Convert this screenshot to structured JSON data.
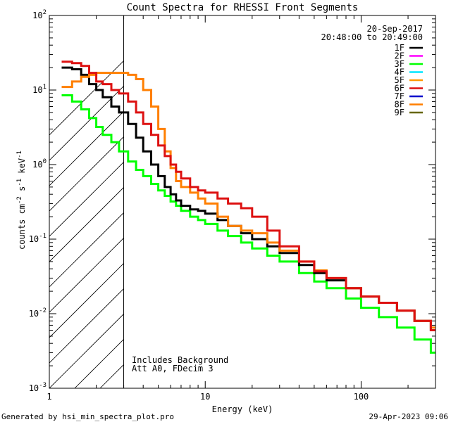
{
  "chart_data": {
    "type": "line",
    "title": "Count Spectra for RHESSI Front Segments",
    "xlabel": "Energy (keV)",
    "ylabel_main": "counts cm",
    "ylabel_exp1": "-2",
    "ylabel_mid": " s",
    "ylabel_exp2": "-1",
    "ylabel_end": " keV",
    "ylabel_exp3": "-1",
    "x_scale": "log",
    "y_scale": "log",
    "xlim": [
      1,
      300
    ],
    "ylim": [
      0.001,
      100
    ],
    "x_ticks": [
      {
        "value": 1,
        "label": "1"
      },
      {
        "value": 10,
        "label": "10"
      },
      {
        "value": 100,
        "label": "100"
      }
    ],
    "y_ticks": [
      {
        "value": 100,
        "base": "10",
        "exp": "2"
      },
      {
        "value": 10,
        "base": "10",
        "exp": "1"
      },
      {
        "value": 1,
        "base": "10",
        "exp": "0"
      },
      {
        "value": 0.1,
        "base": "10",
        "exp": "-1"
      },
      {
        "value": 0.01,
        "base": "10",
        "exp": "-2"
      },
      {
        "value": 0.001,
        "base": "10",
        "exp": "-3"
      }
    ],
    "shaded_region": {
      "from": 1,
      "to": 3,
      "style": "hatched"
    },
    "date": "20-Sep-2017",
    "time_range": "20:48:00 to 20:49:00",
    "annotations": [
      "Includes Background",
      "Att A0, FDecim 3"
    ],
    "legend_position": "top-right",
    "series": [
      {
        "name": "1F",
        "color": "#000000",
        "x": [
          1.2,
          1.4,
          1.6,
          1.8,
          2.0,
          2.2,
          2.5,
          2.8,
          3.2,
          3.6,
          4.0,
          4.5,
          5.0,
          5.5,
          6.0,
          6.5,
          7.0,
          8.0,
          9.0,
          10.0,
          12.0,
          14.0,
          17.0,
          20.0,
          25.0,
          30.0,
          40.0,
          50.0,
          60.0,
          80.0,
          100.0,
          130.0,
          170.0,
          220.0,
          280.0
        ],
        "y": [
          20,
          19,
          16,
          12,
          10,
          8,
          6,
          5,
          3.5,
          2.3,
          1.5,
          1.0,
          0.7,
          0.5,
          0.4,
          0.33,
          0.28,
          0.25,
          0.24,
          0.22,
          0.18,
          0.15,
          0.12,
          0.1,
          0.08,
          0.065,
          0.045,
          0.035,
          0.028,
          0.022,
          0.017,
          0.014,
          0.011,
          0.008,
          0.006
        ]
      },
      {
        "name": "2F",
        "color": "#ff00ff",
        "x": [],
        "y": []
      },
      {
        "name": "3F",
        "color": "#00ff00",
        "x": [
          1.2,
          1.4,
          1.6,
          1.8,
          2.0,
          2.2,
          2.5,
          2.8,
          3.2,
          3.6,
          4.0,
          4.5,
          5.0,
          5.5,
          6.0,
          6.5,
          7.0,
          8.0,
          9.0,
          10.0,
          12.0,
          14.0,
          17.0,
          20.0,
          25.0,
          30.0,
          40.0,
          50.0,
          60.0,
          80.0,
          100.0,
          130.0,
          170.0,
          220.0,
          280.0
        ],
        "y": [
          8.5,
          7.0,
          5.5,
          4.2,
          3.2,
          2.5,
          2.0,
          1.5,
          1.1,
          0.85,
          0.7,
          0.55,
          0.45,
          0.38,
          0.32,
          0.28,
          0.24,
          0.2,
          0.18,
          0.16,
          0.13,
          0.11,
          0.09,
          0.075,
          0.06,
          0.05,
          0.035,
          0.027,
          0.022,
          0.016,
          0.012,
          0.009,
          0.0065,
          0.0045,
          0.003
        ]
      },
      {
        "name": "4F",
        "color": "#00e5ff",
        "x": [],
        "y": []
      },
      {
        "name": "5F",
        "color": "#ff9900",
        "x": [],
        "y": []
      },
      {
        "name": "6F",
        "color": "#dd1111",
        "x": [
          1.2,
          1.4,
          1.6,
          1.8,
          2.0,
          2.2,
          2.5,
          2.8,
          3.2,
          3.6,
          4.0,
          4.5,
          5.0,
          5.5,
          6.0,
          6.5,
          7.0,
          8.0,
          9.0,
          10.0,
          12.0,
          14.0,
          17.0,
          20.0,
          25.0,
          30.0,
          40.0,
          50.0,
          60.0,
          80.0,
          100.0,
          130.0,
          170.0,
          220.0,
          280.0
        ],
        "y": [
          24,
          23,
          21,
          17,
          13,
          12,
          10,
          9,
          7,
          5,
          3.5,
          2.5,
          1.8,
          1.3,
          1.0,
          0.8,
          0.65,
          0.5,
          0.45,
          0.42,
          0.35,
          0.3,
          0.26,
          0.2,
          0.13,
          0.08,
          0.05,
          0.037,
          0.03,
          0.022,
          0.017,
          0.014,
          0.011,
          0.008,
          0.006
        ]
      },
      {
        "name": "7F",
        "color": "#0000cc",
        "x": [],
        "y": []
      },
      {
        "name": "8F",
        "color": "#ff7f00",
        "x": [
          1.2,
          1.4,
          1.6,
          1.8,
          2.0,
          2.2,
          2.5,
          2.8,
          3.2,
          3.6,
          4.0,
          4.5,
          5.0,
          5.5,
          6.0,
          6.5,
          7.0,
          8.0,
          9.0,
          10.0,
          12.0,
          14.0,
          17.0,
          20.0,
          25.0,
          30.0,
          40.0,
          50.0,
          60.0,
          80.0,
          100.0,
          130.0,
          170.0,
          220.0,
          280.0
        ],
        "y": [
          11,
          13,
          15,
          16,
          17,
          17,
          17,
          17,
          16,
          14,
          10,
          6,
          3,
          1.5,
          0.9,
          0.6,
          0.5,
          0.42,
          0.35,
          0.3,
          0.2,
          0.15,
          0.13,
          0.12,
          0.09,
          0.07,
          0.05,
          0.038,
          0.03,
          0.022,
          0.017,
          0.014,
          0.011,
          0.008,
          0.0065
        ]
      },
      {
        "name": "9F",
        "color": "#666600",
        "x": [],
        "y": []
      }
    ]
  },
  "footer": {
    "generated_by": "Generated by hsi_min_spectra_plot.pro",
    "timestamp": "29-Apr-2023 09:06"
  }
}
